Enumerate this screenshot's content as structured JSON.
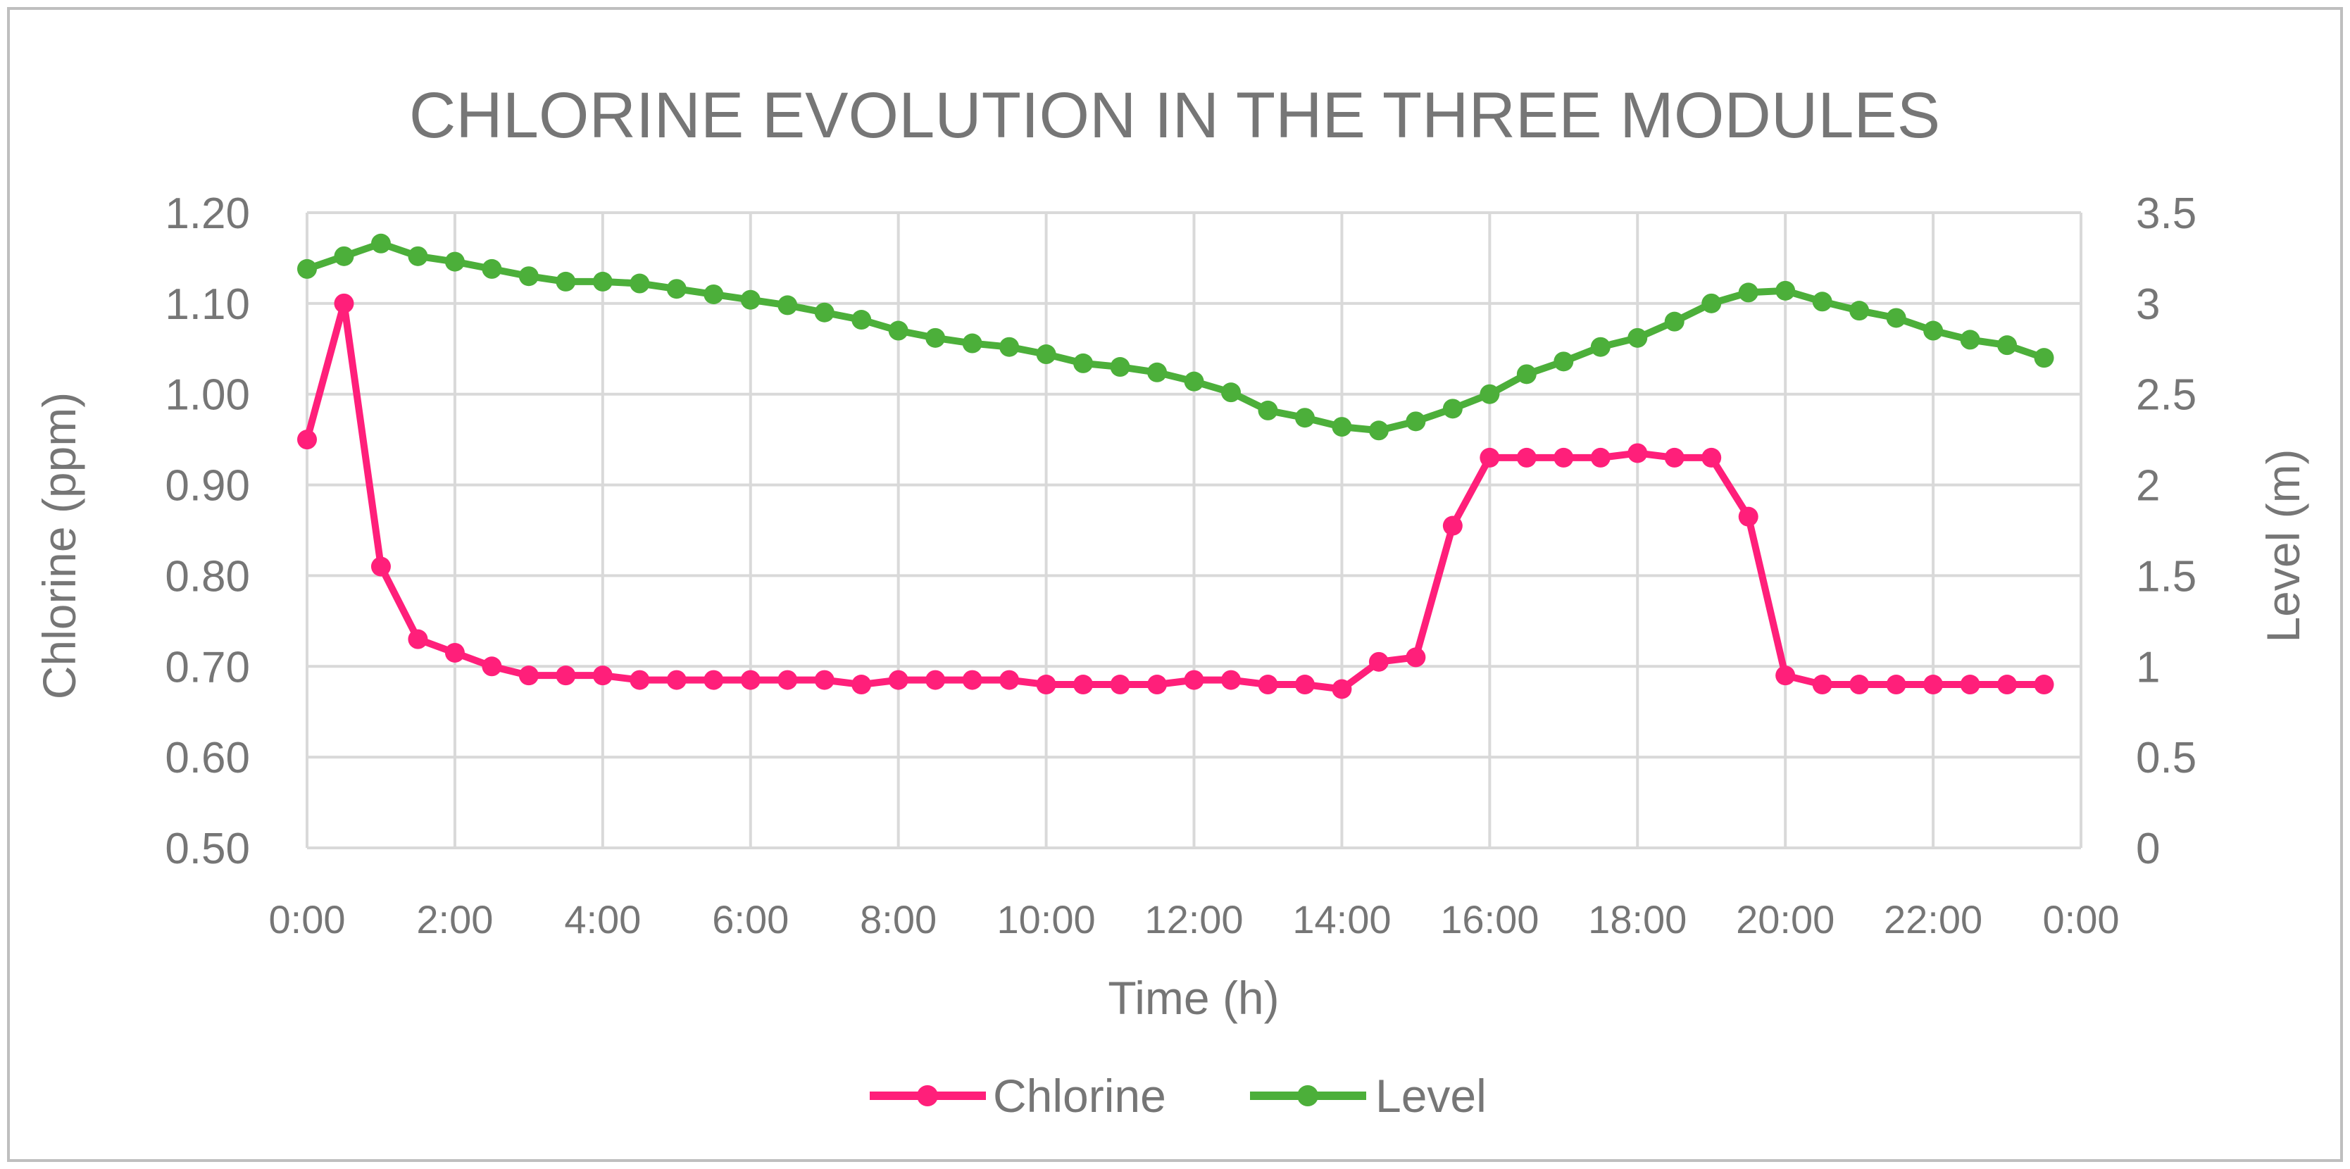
{
  "chart_data": {
    "type": "line",
    "title": "CHLORINE EVOLUTION IN THE THREE MODULES",
    "xlabel": "Time (h)",
    "ylabel": "Chlorine (ppm)",
    "y2label": "Level (m)",
    "x_ticks": [
      "0:00",
      "2:00",
      "4:00",
      "6:00",
      "8:00",
      "10:00",
      "12:00",
      "14:00",
      "16:00",
      "18:00",
      "20:00",
      "22:00",
      "0:00"
    ],
    "ylim": [
      0.5,
      1.2
    ],
    "y_ticks": [
      "0.50",
      "0.60",
      "0.70",
      "0.80",
      "0.90",
      "1.00",
      "1.10",
      "1.20"
    ],
    "y2lim": [
      0,
      3.5
    ],
    "y2_ticks": [
      "0",
      "0.5",
      "1",
      "1.5",
      "2",
      "2.5",
      "3",
      "3.5"
    ],
    "x_hours": [
      0,
      0.5,
      1,
      1.5,
      2,
      2.5,
      3,
      3.5,
      4,
      4.5,
      5,
      5.5,
      6,
      6.5,
      7,
      7.5,
      8,
      8.5,
      9,
      9.5,
      10,
      10.5,
      11,
      11.5,
      12,
      12.5,
      13,
      13.5,
      14,
      14.5,
      15,
      15.5,
      16,
      16.5,
      17,
      17.5,
      18,
      18.5,
      19,
      19.5,
      20,
      20.5,
      21,
      21.5,
      22,
      22.5,
      23,
      23.5
    ],
    "grid": true,
    "legend_position": "bottom",
    "series": [
      {
        "name": "Chlorine",
        "axis": "left",
        "color": "#ff1f7a",
        "values": [
          0.95,
          1.1,
          0.81,
          0.73,
          0.715,
          0.7,
          0.69,
          0.69,
          0.69,
          0.685,
          0.685,
          0.685,
          0.685,
          0.685,
          0.685,
          0.68,
          0.685,
          0.685,
          0.685,
          0.685,
          0.68,
          0.68,
          0.68,
          0.68,
          0.685,
          0.685,
          0.68,
          0.68,
          0.675,
          0.705,
          0.71,
          0.855,
          0.93,
          0.93,
          0.93,
          0.93,
          0.935,
          0.93,
          0.93,
          0.865,
          0.69,
          0.68,
          0.68,
          0.68,
          0.68,
          0.68,
          0.68,
          0.68
        ]
      },
      {
        "name": "Level",
        "axis": "right",
        "color": "#4caf3a",
        "values": [
          3.19,
          3.26,
          3.33,
          3.26,
          3.23,
          3.19,
          3.15,
          3.12,
          3.12,
          3.11,
          3.08,
          3.05,
          3.02,
          2.99,
          2.95,
          2.91,
          2.85,
          2.81,
          2.78,
          2.76,
          2.72,
          2.67,
          2.65,
          2.62,
          2.57,
          2.51,
          2.41,
          2.37,
          2.32,
          2.3,
          2.35,
          2.42,
          2.5,
          2.61,
          2.68,
          2.76,
          2.81,
          2.9,
          3.0,
          3.06,
          3.07,
          3.01,
          2.96,
          2.92,
          2.85,
          2.8,
          2.77,
          2.7
        ]
      }
    ]
  }
}
